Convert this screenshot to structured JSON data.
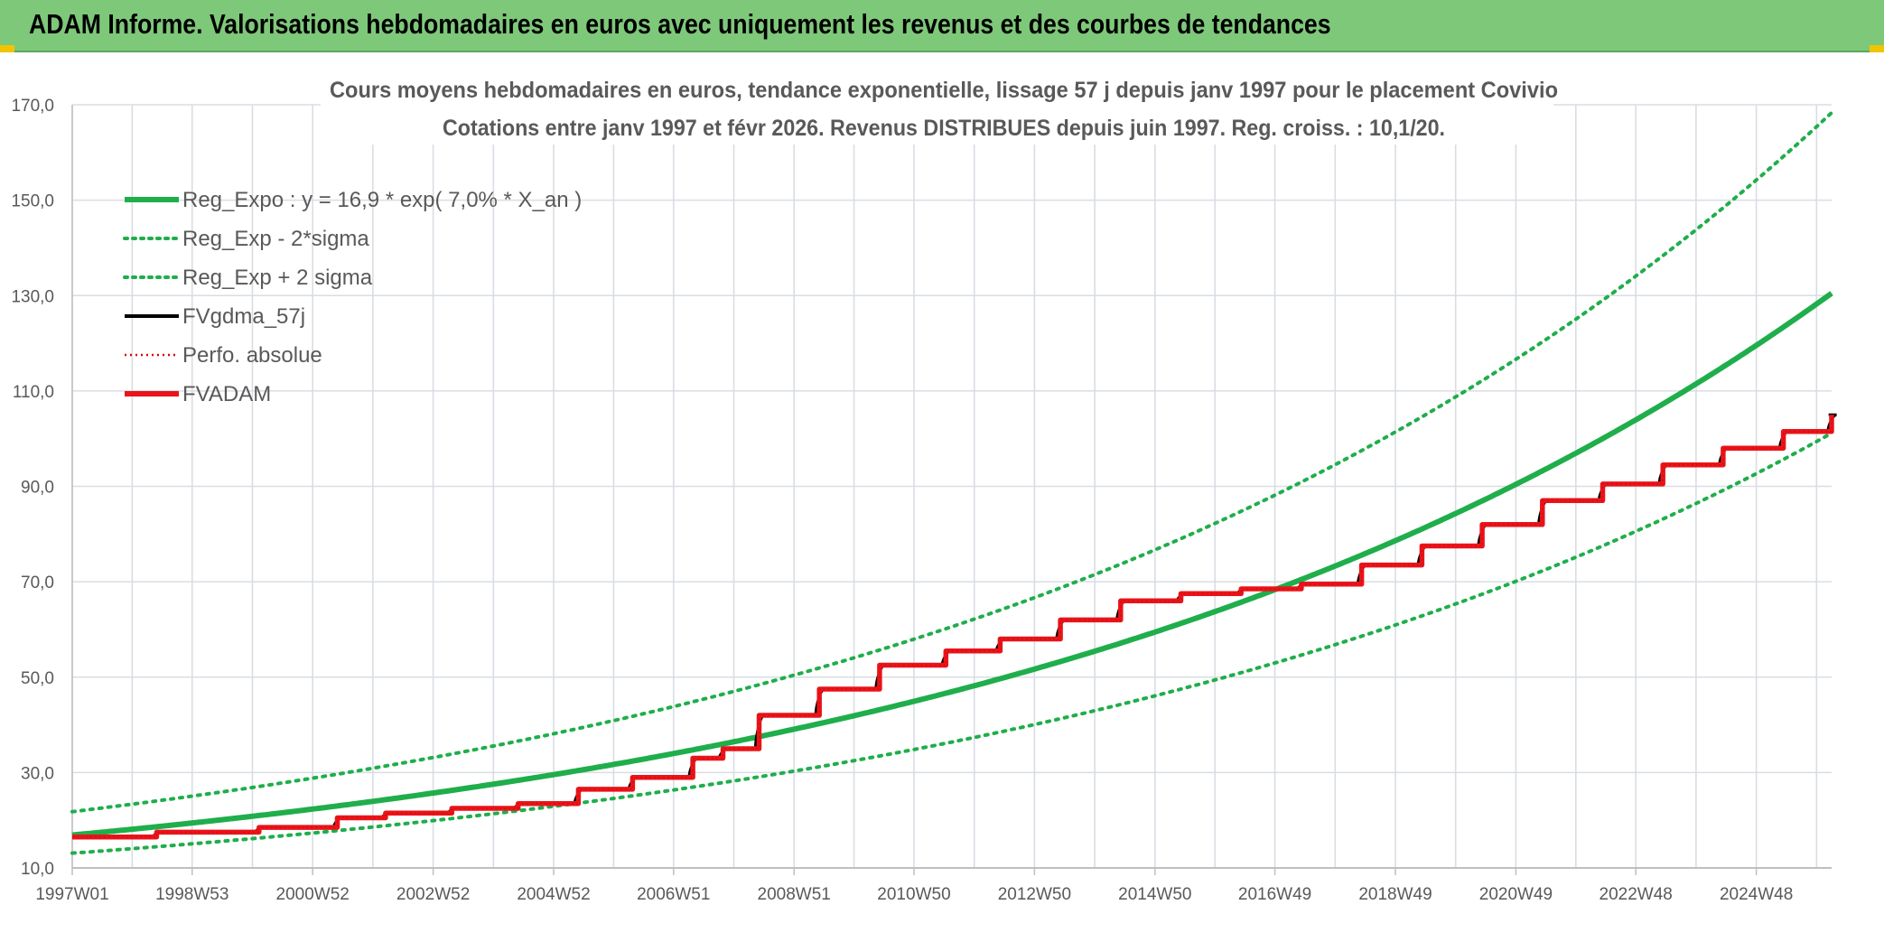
{
  "banner": {
    "title": "ADAM Informe. Valorisations hebdomadaires en euros avec uniquement les revenus et des courbes de tendances"
  },
  "colors": {
    "banner_bg": "#7ec87a",
    "reg_expo": "#1fae4b",
    "sigma": "#1fae4b",
    "fvgdma": "#000000",
    "perfo": "#e00000",
    "fvadam": "#e8151b",
    "grid": "#d9dde3",
    "text": "#595959"
  },
  "chart_data": {
    "type": "line",
    "title_line1": "Cours moyens hebdomadaires en euros, tendance exponentielle, lissage 57 j depuis janv 1997 pour le placement Covivio",
    "title_line2": "Cotations entre janv 1997 et févr 2026. Revenus DISTRIBUES depuis juin 1997. Reg. croiss. : 10,1/20.",
    "xlabel": "",
    "ylabel": "",
    "ylim": [
      10,
      170
    ],
    "xlim": [
      1997.0,
      2026.2
    ],
    "y_ticks": [
      "10,0",
      "30,0",
      "50,0",
      "70,0",
      "90,0",
      "110,0",
      "130,0",
      "150,0",
      "170,0"
    ],
    "y_tick_values": [
      10,
      30,
      50,
      70,
      90,
      110,
      130,
      150,
      170
    ],
    "x_ticks": [
      "1997W01",
      "1998W53",
      "2000W52",
      "2002W52",
      "2004W52",
      "2006W51",
      "2008W51",
      "2010W50",
      "2012W50",
      "2014W50",
      "2016W49",
      "2018W49",
      "2020W49",
      "2022W48",
      "2024W48"
    ],
    "x_tick_values": [
      1997.0,
      1998.99,
      2000.99,
      2002.99,
      2004.99,
      2006.98,
      2008.98,
      2010.97,
      2012.97,
      2014.97,
      2016.96,
      2018.96,
      2020.96,
      2022.95,
      2024.95
    ],
    "grid": true,
    "legend_position": "top-left",
    "legend": [
      {
        "label": "Reg_Expo : y = 16,9 * exp( 7,0% *  X_an )",
        "style": "solid-thick",
        "color": "#1fae4b"
      },
      {
        "label": "Reg_Exp - 2*sigma",
        "style": "dotted",
        "color": "#1fae4b"
      },
      {
        "label": "Reg_Exp + 2 sigma",
        "style": "dotted",
        "color": "#1fae4b"
      },
      {
        "label": "FVgdma_57j",
        "style": "solid",
        "color": "#000000"
      },
      {
        "label": "Perfo. absolue",
        "style": "dotted-thin",
        "color": "#e00000"
      },
      {
        "label": "FVADAM",
        "style": "solid-thick",
        "color": "#e8151b"
      }
    ],
    "series": [
      {
        "name": "Reg_Expo : y = 16,9 * exp( 7,0% *  X_an )",
        "kind": "exp",
        "a": 16.9,
        "b": 0.07,
        "start_year": 1997.0
      },
      {
        "name": "Reg_Exp - 2*sigma",
        "kind": "exp",
        "a": 13.1,
        "b": 0.07,
        "start_year": 1997.0
      },
      {
        "name": "Reg_Exp + 2 sigma",
        "kind": "exp",
        "a": 21.8,
        "b": 0.07,
        "start_year": 1997.0
      },
      {
        "name": "FVADAM",
        "kind": "step",
        "steps": [
          {
            "x": 1997.0,
            "y": 16.5
          },
          {
            "x": 1998.4,
            "y": 17.5
          },
          {
            "x": 2000.1,
            "y": 18.5
          },
          {
            "x": 2001.4,
            "y": 20.5
          },
          {
            "x": 2002.2,
            "y": 21.5
          },
          {
            "x": 2003.3,
            "y": 22.5
          },
          {
            "x": 2004.4,
            "y": 23.5
          },
          {
            "x": 2005.4,
            "y": 26.5
          },
          {
            "x": 2006.3,
            "y": 29.0
          },
          {
            "x": 2007.3,
            "y": 33.0
          },
          {
            "x": 2007.8,
            "y": 35.0
          },
          {
            "x": 2008.4,
            "y": 42.0
          },
          {
            "x": 2009.4,
            "y": 47.5
          },
          {
            "x": 2010.4,
            "y": 52.5
          },
          {
            "x": 2011.5,
            "y": 55.5
          },
          {
            "x": 2012.4,
            "y": 58.0
          },
          {
            "x": 2013.4,
            "y": 62.0
          },
          {
            "x": 2014.4,
            "y": 66.0
          },
          {
            "x": 2015.4,
            "y": 67.5
          },
          {
            "x": 2016.4,
            "y": 68.5
          },
          {
            "x": 2017.4,
            "y": 69.5
          },
          {
            "x": 2018.4,
            "y": 73.5
          },
          {
            "x": 2019.4,
            "y": 77.5
          },
          {
            "x": 2020.4,
            "y": 82.0
          },
          {
            "x": 2021.4,
            "y": 87.0
          },
          {
            "x": 2022.4,
            "y": 90.5
          },
          {
            "x": 2023.4,
            "y": 94.5
          },
          {
            "x": 2024.4,
            "y": 98.0
          },
          {
            "x": 2025.4,
            "y": 101.5
          },
          {
            "x": 2026.2,
            "y": 105.0
          }
        ],
        "end_x": 2026.2
      }
    ]
  }
}
